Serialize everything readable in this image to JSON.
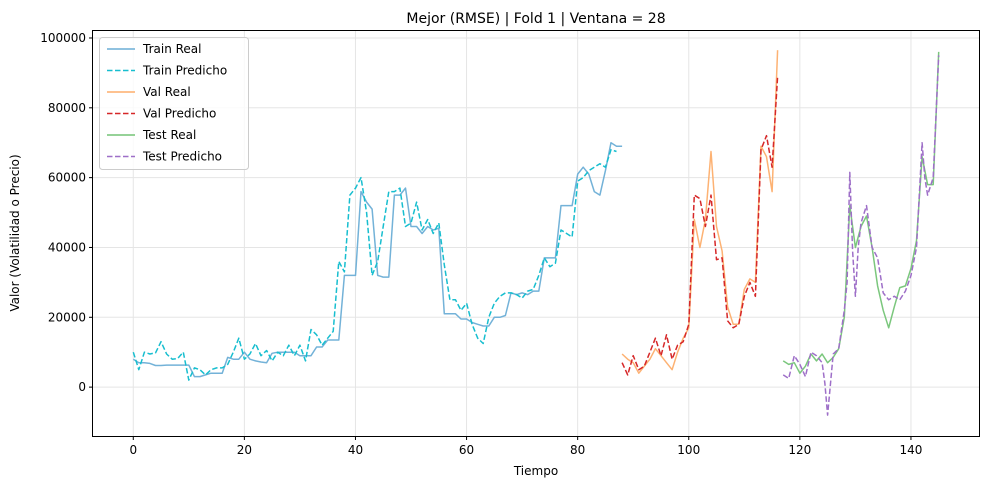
{
  "chart_data": {
    "type": "line",
    "title": "Mejor (RMSE) | Fold 1 | Ventana = 28",
    "xlabel": "Tiempo",
    "ylabel": "Valor (Volatilidad o Precio)",
    "xlim": [
      -7.25,
      152.25
    ],
    "ylim": [
      -14000,
      102000
    ],
    "xticks": [
      0,
      20,
      40,
      60,
      80,
      100,
      120,
      140
    ],
    "yticks": [
      0,
      20000,
      40000,
      60000,
      80000,
      100000
    ],
    "grid": true,
    "legend_position": "top-left",
    "series": [
      {
        "name": "Train Real",
        "color": "#6baed6",
        "dash": "solid",
        "x": [
          0,
          1,
          2,
          3,
          4,
          5,
          6,
          7,
          8,
          9,
          10,
          11,
          12,
          13,
          14,
          15,
          16,
          17,
          18,
          19,
          20,
          21,
          22,
          23,
          24,
          25,
          26,
          27,
          28,
          29,
          30,
          31,
          32,
          33,
          34,
          35,
          36,
          37,
          38,
          39,
          40,
          41,
          42,
          43,
          44,
          45,
          46,
          47,
          48,
          49,
          50,
          51,
          52,
          53,
          54,
          55,
          56,
          57,
          58,
          59,
          60,
          61,
          62,
          63,
          64,
          65,
          66,
          67,
          68,
          69,
          70,
          71,
          72,
          73,
          74,
          75,
          76,
          77,
          78,
          79,
          80,
          81,
          82,
          83,
          84,
          85,
          86,
          87
        ],
        "values": [
          8000,
          7000,
          7000,
          6800,
          6200,
          6200,
          6300,
          6300,
          6300,
          6300,
          6300,
          3000,
          3000,
          3500,
          4000,
          4000,
          4000,
          8500,
          8000,
          8000,
          10000,
          8000,
          7500,
          7200,
          7000,
          9700,
          10000,
          10000,
          10000,
          10000,
          9000,
          9000,
          9000,
          11500,
          11500,
          13500,
          13500,
          13500,
          32000,
          32000,
          32000,
          56000,
          53000,
          51000,
          32000,
          31500,
          31500,
          55000,
          55000,
          57000,
          46000,
          46000,
          44000,
          46000,
          45000,
          45500,
          21000,
          21000,
          21000,
          19500,
          19500,
          18500,
          18000,
          17500,
          17500,
          20000,
          20000,
          20500,
          27000,
          26500,
          27000,
          26500,
          27500,
          27500,
          37000,
          37000,
          37000,
          52000,
          52000,
          52000,
          61000,
          63000,
          61000,
          56000,
          55000,
          62000,
          70000,
          69000
        ],
        "x_tail": [
          88
        ],
        "values_tail": [
          69000
        ]
      },
      {
        "name": "Train Predicho",
        "color": "#17becf",
        "dash": "dashed",
        "x": [
          0,
          1,
          2,
          3,
          4,
          5,
          6,
          7,
          8,
          9,
          10,
          11,
          12,
          13,
          14,
          15,
          16,
          17,
          18,
          19,
          20,
          21,
          22,
          23,
          24,
          25,
          26,
          27,
          28,
          29,
          30,
          31,
          32,
          33,
          34,
          35,
          36,
          37,
          38,
          39,
          40,
          41,
          42,
          43,
          44,
          45,
          46,
          47,
          48,
          49,
          50,
          51,
          52,
          53,
          54,
          55,
          56,
          57,
          58,
          59,
          60,
          61,
          62,
          63,
          64,
          65,
          66,
          67,
          68,
          69,
          70,
          71,
          72,
          73,
          74,
          75,
          76,
          77,
          78,
          79,
          80,
          81,
          82,
          83,
          84,
          85,
          86,
          87
        ],
        "values": [
          10000,
          5000,
          10000,
          9500,
          9800,
          13000,
          9500,
          8000,
          8200,
          10000,
          2000,
          5500,
          5000,
          3500,
          5000,
          5500,
          5500,
          6500,
          10000,
          14000,
          8000,
          9500,
          12500,
          9000,
          10500,
          7500,
          10000,
          9000,
          12000,
          9000,
          12000,
          7500,
          16500,
          15000,
          12000,
          14000,
          16000,
          36000,
          33000,
          55000,
          57000,
          60000,
          50000,
          32000,
          36000,
          46000,
          56000,
          56000,
          57000,
          46000,
          47000,
          53000,
          45000,
          48000,
          44000,
          47000,
          35000,
          25000,
          25000,
          22000,
          24000,
          18000,
          14000,
          12500,
          20000,
          24000,
          26000,
          27000,
          27000,
          26500,
          25500,
          27500,
          28000,
          32000,
          37000,
          34500,
          35500,
          45000,
          44000,
          43000,
          59000,
          60000,
          62000,
          63000,
          64000,
          63000,
          68000,
          67500
        ],
        "x_tail": [],
        "values_tail": []
      },
      {
        "name": "Val Real",
        "color": "#fdae6b",
        "dash": "solid",
        "x": [
          88,
          89,
          90,
          91,
          92,
          93,
          94,
          95,
          96,
          97,
          98,
          99,
          100,
          101,
          102,
          103,
          104,
          105,
          106,
          107,
          108,
          109,
          110,
          111,
          112,
          113,
          114,
          115,
          116
        ],
        "values": [
          9500,
          8000,
          7000,
          4000,
          6000,
          8000,
          11000,
          9000,
          7000,
          5000,
          10000,
          14000,
          17000,
          48000,
          40000,
          48000,
          67500,
          46000,
          39000,
          23000,
          18000,
          18000,
          28000,
          31000,
          30000,
          69000,
          66000,
          56000,
          96500
        ]
      },
      {
        "name": "Val Predicho",
        "color": "#d62728",
        "dash": "dashed",
        "x": [
          88,
          89,
          90,
          91,
          92,
          93,
          94,
          95,
          96,
          97,
          98,
          99,
          100,
          101,
          102,
          103,
          104,
          105,
          106,
          107,
          108,
          109,
          110,
          111,
          112,
          113,
          114,
          115,
          116
        ],
        "values": [
          7000,
          3500,
          9000,
          5000,
          6000,
          10000,
          14000,
          9000,
          15000,
          8000,
          12000,
          13000,
          18000,
          55000,
          54000,
          46000,
          55000,
          36500,
          37000,
          19000,
          17000,
          18000,
          26000,
          30000,
          26000,
          68000,
          72000,
          63000,
          89000
        ]
      },
      {
        "name": "Test Real",
        "color": "#74c476",
        "dash": "solid",
        "x": [
          117,
          118,
          119,
          120,
          121,
          122,
          123,
          124,
          125,
          126,
          127,
          128,
          129,
          130,
          131,
          132,
          133,
          134,
          135,
          136,
          137,
          138,
          139,
          140,
          141,
          142,
          143,
          144,
          145
        ],
        "values": [
          7500,
          6500,
          7000,
          4000,
          6000,
          9500,
          7500,
          9500,
          7000,
          8500,
          11000,
          20000,
          52000,
          40000,
          46000,
          49000,
          40000,
          29000,
          22000,
          17000,
          23000,
          28500,
          29000,
          34000,
          42000,
          66000,
          58000,
          58000,
          96000
        ]
      },
      {
        "name": "Test Predicho",
        "color": "#9e6fc8",
        "dash": "dashed",
        "x": [
          117,
          118,
          119,
          120,
          121,
          122,
          123,
          124,
          124.5,
          125,
          126,
          127,
          128,
          128.5,
          129,
          129.5,
          130,
          130.5,
          131,
          132,
          133,
          134,
          135,
          136,
          137,
          138,
          139,
          140,
          141,
          142,
          142.5,
          143,
          144,
          145
        ],
        "values": [
          3500,
          2500,
          9000,
          6500,
          3000,
          10000,
          9000,
          7000,
          1000,
          -8000,
          9500,
          11000,
          22000,
          30000,
          61500,
          39000,
          26000,
          40000,
          47000,
          52000,
          40000,
          37000,
          27000,
          25000,
          26000,
          25000,
          27500,
          32000,
          40000,
          70000,
          60000,
          55000,
          60000,
          95000
        ]
      }
    ]
  }
}
